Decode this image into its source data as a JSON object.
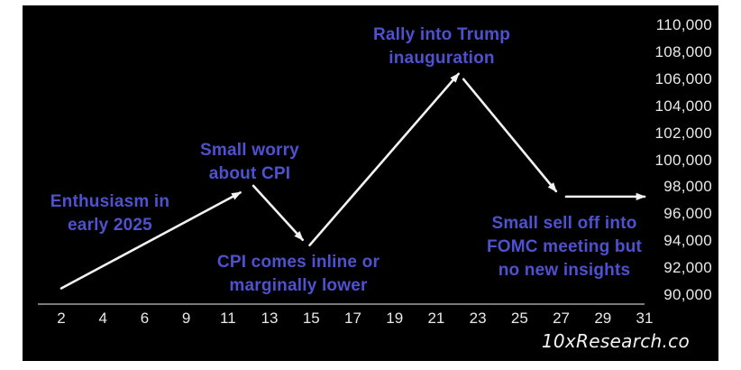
{
  "attribution": "10xResearch.co",
  "colors": {
    "background": "#ffffff",
    "chart_background": "#000000",
    "annotation_text": "#4e51d0",
    "line": "#f2f2f2",
    "axis_line": "#a3a3a3",
    "tick_label": "#e9e9e9"
  },
  "chart_data": {
    "type": "line",
    "title": "",
    "xlabel": "",
    "ylabel": "",
    "x_ticks": [
      "2",
      "4",
      "6",
      "9",
      "11",
      "13",
      "15",
      "17",
      "19",
      "21",
      "23",
      "25",
      "27",
      "29",
      "31"
    ],
    "y_ticks": [
      "110,000",
      "108,000",
      "106,000",
      "104,000",
      "102,000",
      "100,000",
      "98,000",
      "96,000",
      "94,000",
      "92,000",
      "90,000"
    ],
    "x_range_days": [
      2,
      31
    ],
    "y_range": [
      90000,
      110000
    ],
    "grid": false,
    "legend": false,
    "series": [
      {
        "name": "projected-price-path",
        "style": "arrow-segments",
        "segments": [
          {
            "from": {
              "day": 2.0,
              "value": 90500
            },
            "to": {
              "day": 10.9,
              "value": 97600
            },
            "arrow": true
          },
          {
            "from": {
              "day": 11.55,
              "value": 98100
            },
            "to": {
              "day": 14.0,
              "value": 94100
            },
            "arrow": true
          },
          {
            "from": {
              "day": 14.35,
              "value": 93700
            },
            "to": {
              "day": 21.75,
              "value": 106400
            },
            "arrow": true
          },
          {
            "from": {
              "day": 22.0,
              "value": 106000
            },
            "to": {
              "day": 26.6,
              "value": 97700
            },
            "arrow": true
          },
          {
            "from": {
              "day": 27.1,
              "value": 97300
            },
            "to": {
              "day": 31.0,
              "value": 97300
            },
            "arrow": true
          }
        ]
      }
    ],
    "annotations": [
      {
        "id": "enthusiasm",
        "lines": [
          "Enthusiasm in",
          "early 2025"
        ]
      },
      {
        "id": "small-worry",
        "lines": [
          "Small worry",
          "about CPI"
        ]
      },
      {
        "id": "cpi-inline",
        "lines": [
          "CPI comes inline or",
          "marginally lower"
        ]
      },
      {
        "id": "rally",
        "lines": [
          "Rally into Trump",
          "inauguration"
        ]
      },
      {
        "id": "selloff",
        "lines": [
          "Small sell off into",
          "FOMC meeting but",
          "no new insights"
        ]
      }
    ]
  }
}
